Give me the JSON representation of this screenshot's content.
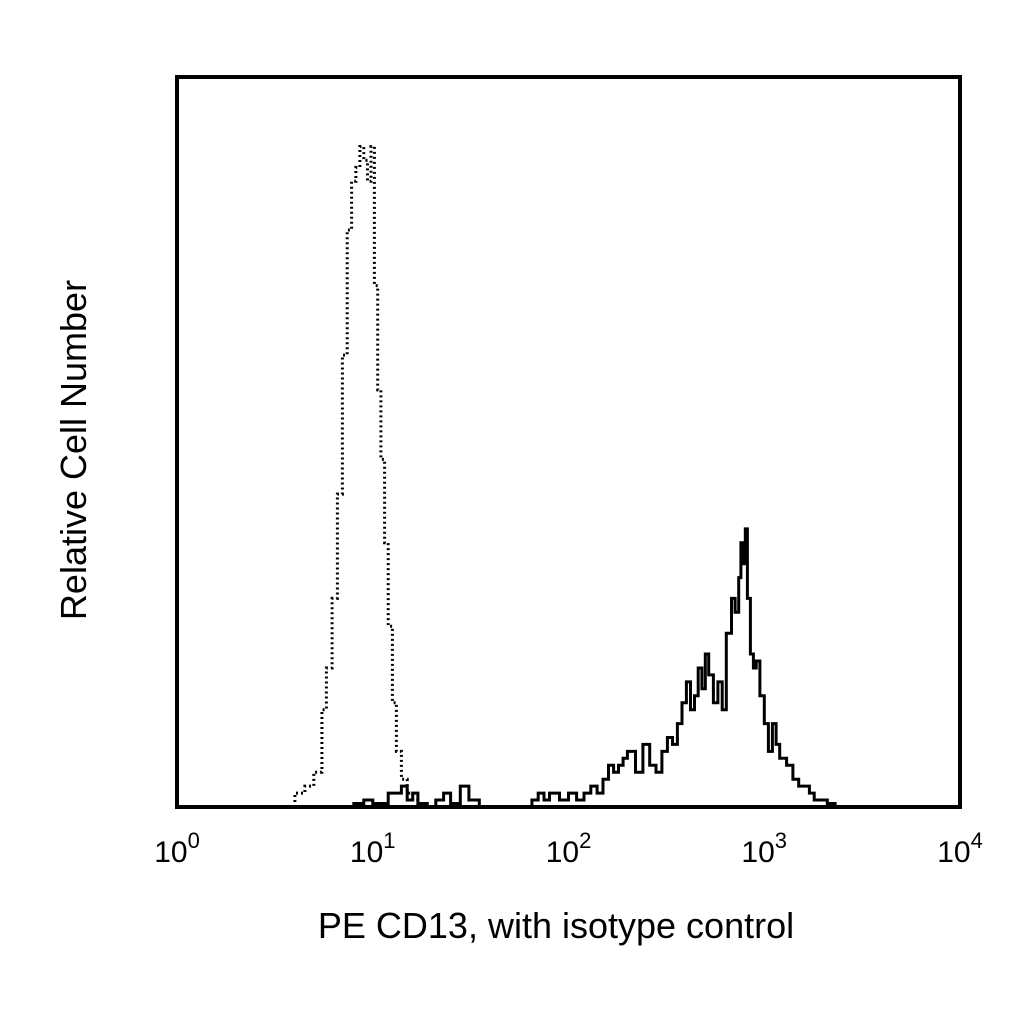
{
  "chart_data": {
    "type": "area",
    "xlabel": "PE CD13, with isotype control",
    "ylabel": "Relative Cell Number",
    "x_scale": "log10",
    "xlim": [
      1,
      10000
    ],
    "ylim": [
      0,
      1.05
    ],
    "x_ticks": [
      {
        "value": 1,
        "base": "10",
        "exp": "0"
      },
      {
        "value": 10,
        "base": "10",
        "exp": "1"
      },
      {
        "value": 100,
        "base": "10",
        "exp": "2"
      },
      {
        "value": 1000,
        "base": "10",
        "exp": "3"
      },
      {
        "value": 10000,
        "base": "10",
        "exp": "4"
      }
    ],
    "y_ticks_shown": false,
    "grid": false,
    "legend": "none",
    "series": [
      {
        "style": "dotted",
        "x": [
          2.5,
          3.5,
          4.0,
          4.5,
          5.0,
          5.5,
          5.8,
          6.2,
          6.6,
          7.0,
          7.4,
          7.8,
          8.2,
          8.6,
          9.0,
          9.4,
          9.8,
          10.2,
          10.6,
          11.0,
          11.5,
          12.0,
          12.6,
          13.2,
          14.0,
          15.0,
          16.0,
          17.0,
          18.5
        ],
        "y": [
          0.0,
          0.0,
          0.02,
          0.03,
          0.05,
          0.14,
          0.2,
          0.3,
          0.45,
          0.65,
          0.83,
          0.9,
          0.92,
          0.95,
          0.93,
          0.9,
          0.95,
          0.75,
          0.6,
          0.5,
          0.38,
          0.26,
          0.15,
          0.08,
          0.04,
          0.02,
          0.01,
          0.005,
          0.0
        ]
      },
      {
        "style": "solid",
        "x": [
          7,
          8,
          9,
          10,
          12,
          14,
          15,
          16,
          17,
          19,
          21,
          23,
          25,
          28,
          31,
          35,
          40,
          45,
          50,
          55,
          60,
          65,
          70,
          75,
          80,
          90,
          100,
          110,
          120,
          130,
          140,
          150,
          160,
          170,
          180,
          190,
          200,
          220,
          240,
          260,
          280,
          300,
          320,
          340,
          360,
          380,
          400,
          420,
          440,
          460,
          480,
          500,
          520,
          550,
          580,
          610,
          640,
          680,
          710,
          740,
          760,
          780,
          800,
          820,
          850,
          880,
          910,
          950,
          1000,
          1050,
          1100,
          1150,
          1200,
          1300,
          1400,
          1500,
          1600,
          1700,
          1800,
          1950,
          2100,
          2300
        ],
        "y": [
          0.0,
          0.005,
          0.01,
          0.005,
          0.02,
          0.03,
          0.01,
          0.02,
          0.005,
          0.0,
          0.01,
          0.02,
          0.005,
          0.03,
          0.01,
          0.0,
          0.0,
          0.0,
          0.0,
          0.0,
          0.0,
          0.01,
          0.02,
          0.01,
          0.02,
          0.01,
          0.02,
          0.01,
          0.02,
          0.03,
          0.02,
          0.04,
          0.06,
          0.05,
          0.06,
          0.07,
          0.08,
          0.05,
          0.09,
          0.06,
          0.05,
          0.08,
          0.1,
          0.09,
          0.12,
          0.15,
          0.18,
          0.14,
          0.16,
          0.2,
          0.17,
          0.22,
          0.19,
          0.15,
          0.18,
          0.14,
          0.25,
          0.3,
          0.28,
          0.33,
          0.38,
          0.35,
          0.4,
          0.3,
          0.22,
          0.2,
          0.21,
          0.16,
          0.12,
          0.08,
          0.12,
          0.09,
          0.07,
          0.06,
          0.04,
          0.03,
          0.03,
          0.02,
          0.01,
          0.01,
          0.005,
          0.0
        ]
      }
    ]
  }
}
